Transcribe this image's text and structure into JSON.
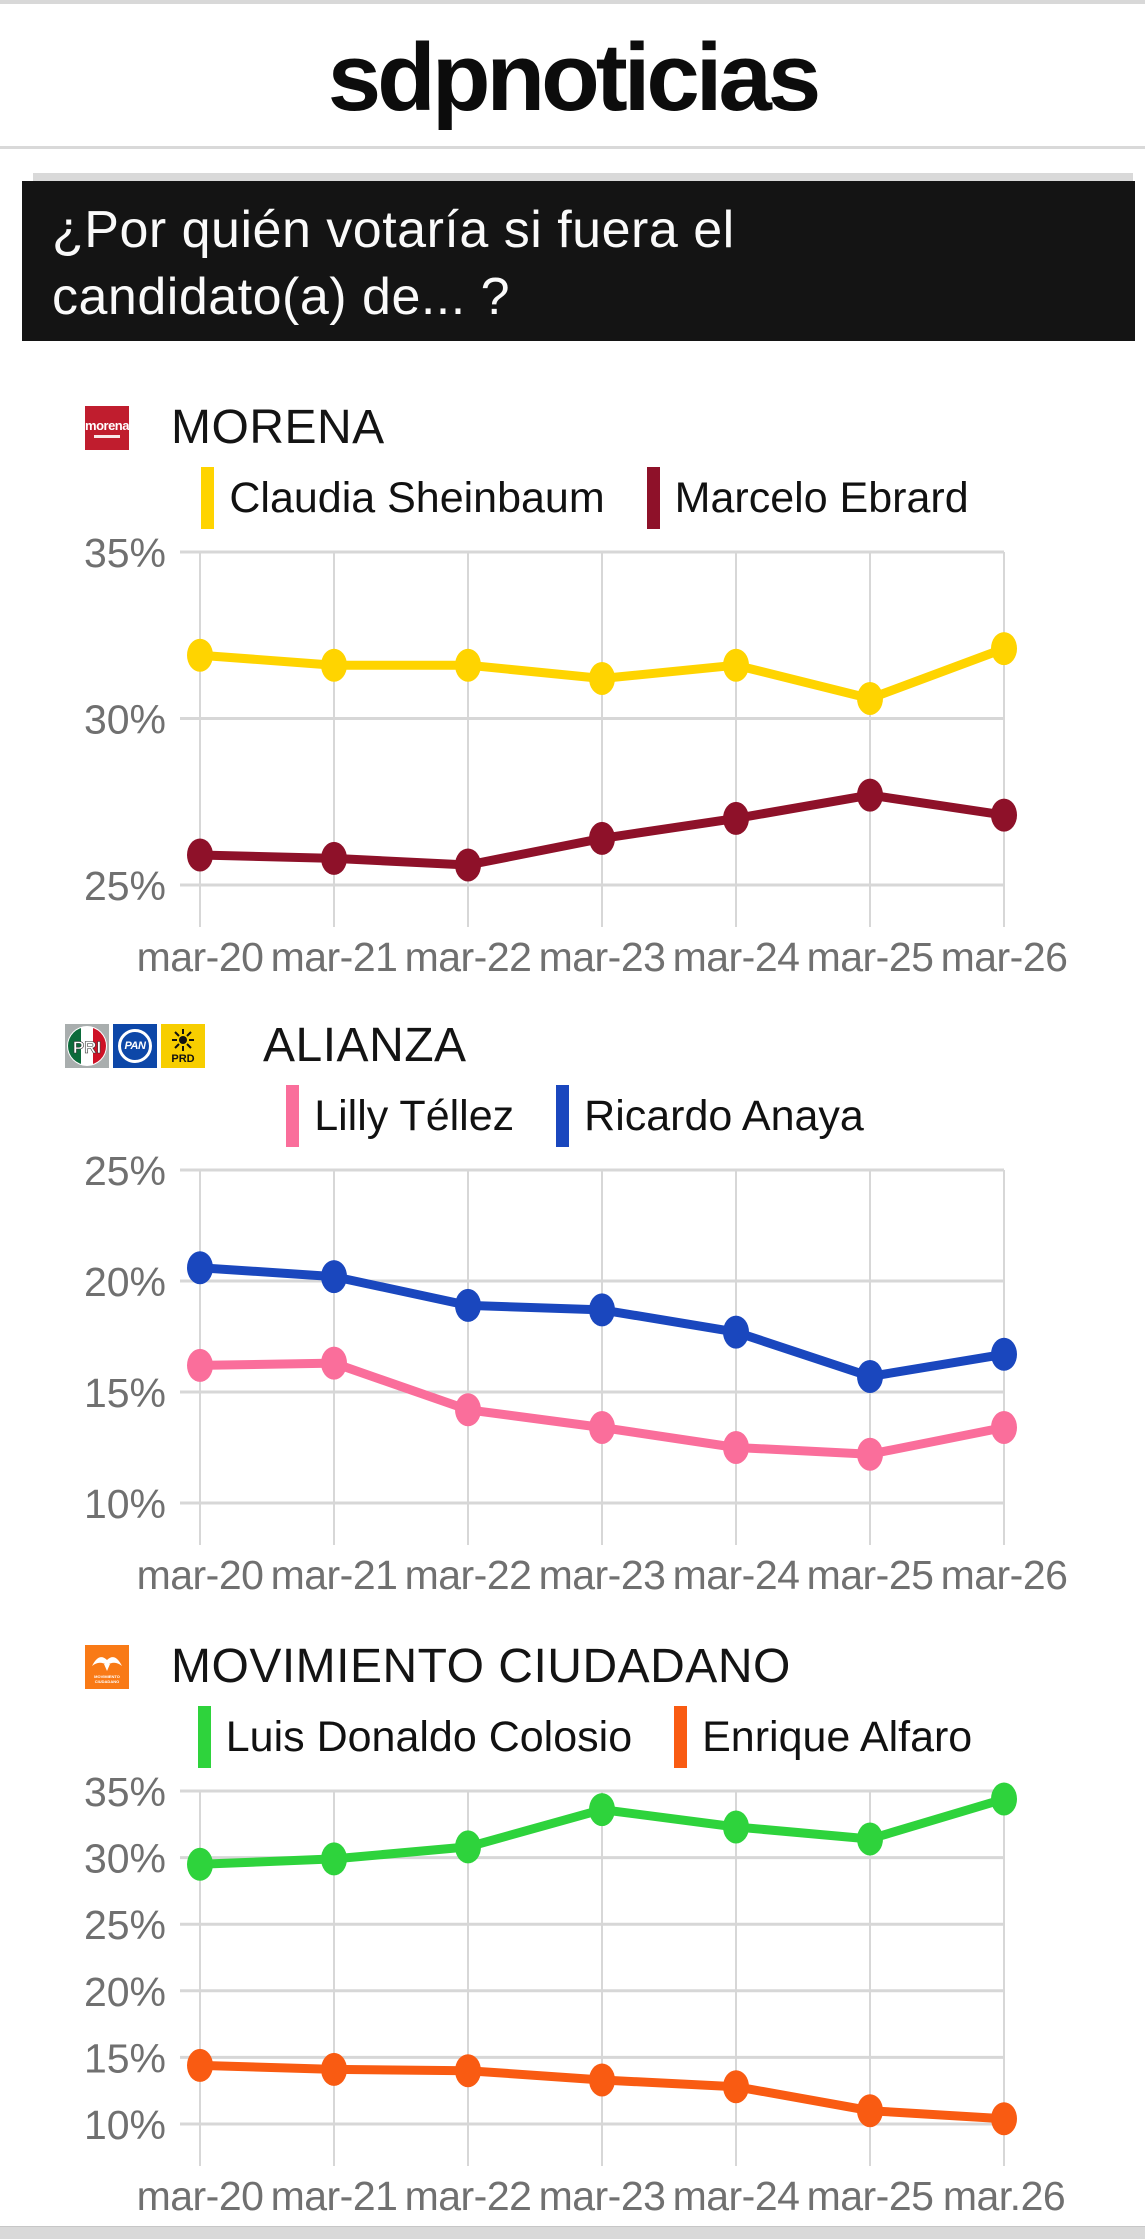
{
  "header": {
    "brand": "sdpnoticias"
  },
  "banner": {
    "question": "¿Por quién votaría si fuera el candidato(a) de... ?"
  },
  "logos": {
    "morena": {
      "text": "morena"
    },
    "pri": {
      "text": "PRI"
    },
    "pan": {
      "text": "PAN"
    },
    "prd": {
      "text": "PRD"
    },
    "mc": {
      "text": "MOVIMIENTO CIUDADANO"
    }
  },
  "colors": {
    "banner_bg": "#141414",
    "axis_label": "#707070",
    "gridline": "#d7d7d7",
    "morena_red": "#c01d2e",
    "pan_blue": "#0d47a8",
    "prd_yellow": "#f7ce00",
    "mc_orange": "#f97a16"
  },
  "chart_data": [
    {
      "type": "line",
      "party": "MORENA",
      "categories": [
        "mar-20",
        "mar-21",
        "mar-22",
        "mar-23",
        "mar-24",
        "mar-25",
        "mar-26"
      ],
      "y_ticks": [
        35,
        30,
        25
      ],
      "y_tick_suffix": "%",
      "grid": true,
      "legend_position": "top",
      "series": [
        {
          "name": "Claudia Sheinbaum",
          "color": "#ffd400",
          "values": [
            31.9,
            31.6,
            31.6,
            31.2,
            31.6,
            30.6,
            32.1
          ]
        },
        {
          "name": "Marcelo Ebrard",
          "color": "#8e1129",
          "values": [
            25.9,
            25.8,
            25.6,
            26.4,
            27.0,
            27.7,
            27.1
          ]
        }
      ]
    },
    {
      "type": "line",
      "party": "ALIANZA",
      "categories": [
        "mar-20",
        "mar-21",
        "mar-22",
        "mar-23",
        "mar-24",
        "mar-25",
        "mar-26"
      ],
      "y_ticks": [
        25,
        20,
        15,
        10
      ],
      "y_tick_suffix": "%",
      "grid": true,
      "legend_position": "top",
      "series": [
        {
          "name": "Lilly Téllez",
          "color": "#fa6e9b",
          "values": [
            16.2,
            16.3,
            14.2,
            13.4,
            12.5,
            12.2,
            13.4
          ]
        },
        {
          "name": "Ricardo Anaya",
          "color": "#1a47be",
          "values": [
            20.6,
            20.2,
            18.9,
            18.7,
            17.7,
            15.7,
            16.7
          ]
        }
      ]
    },
    {
      "type": "line",
      "party": "MOVIMIENTO CIUDADANO",
      "categories": [
        "mar-20",
        "mar-21",
        "mar-22",
        "mar-23",
        "mar-24",
        "mar-25",
        "mar.26"
      ],
      "y_ticks": [
        35,
        30,
        25,
        20,
        15,
        10
      ],
      "y_tick_suffix": "%",
      "grid": true,
      "legend_position": "top",
      "series": [
        {
          "name": "Luis Donaldo Colosio",
          "color": "#2ed33c",
          "values": [
            29.5,
            29.9,
            30.8,
            33.6,
            32.3,
            31.4,
            34.4
          ]
        },
        {
          "name": "Enrique Alfaro",
          "color": "#f95b12",
          "values": [
            14.4,
            14.1,
            14.0,
            13.3,
            12.8,
            11.0,
            10.4
          ]
        }
      ]
    }
  ]
}
